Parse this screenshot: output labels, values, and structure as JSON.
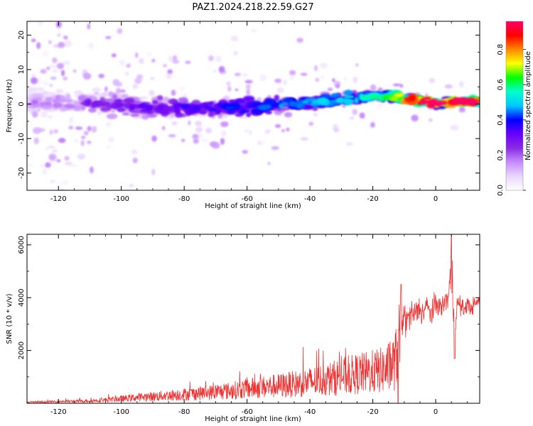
{
  "title": "PAZ1.2024.218.22.59.G27",
  "chart_data": [
    {
      "type": "heatmap",
      "xlabel": "Height of straight line (km)",
      "ylabel": "Frequency (Hz)",
      "xlim": [
        -130,
        14
      ],
      "ylim": [
        -25,
        24
      ],
      "xticks": [
        -120,
        -100,
        -80,
        -60,
        -40,
        -20,
        0
      ],
      "yticks": [
        -20,
        -10,
        0,
        10,
        20
      ],
      "colorbar": {
        "label": "Normalized spectral amplitude",
        "range": [
          0,
          0.96
        ],
        "ticks": [
          "0.0",
          "0.2",
          "0.4",
          "0.6",
          "0.8"
        ],
        "colormap": [
          "#ffffff",
          "#e9d6ff",
          "#c68cff",
          "#8a2be2",
          "#6a00ff",
          "#0000ff",
          "#00c8ff",
          "#00ffcc",
          "#00ff00",
          "#ffff00",
          "#ff8800",
          "#ff0000",
          "#ff0066"
        ]
      },
      "ridge": [
        {
          "x": -130,
          "f": 0.5,
          "amp": 0.15
        },
        {
          "x": -110,
          "f": 0.5,
          "amp": 0.25
        },
        {
          "x": -90,
          "f": -1.0,
          "amp": 0.3
        },
        {
          "x": -70,
          "f": -1.0,
          "amp": 0.35
        },
        {
          "x": -50,
          "f": -0.5,
          "amp": 0.4
        },
        {
          "x": -30,
          "f": 1.5,
          "amp": 0.45
        },
        {
          "x": -15,
          "f": 2.5,
          "amp": 0.55
        },
        {
          "x": -5,
          "f": 1.0,
          "amp": 0.85
        },
        {
          "x": 0,
          "f": 0.3,
          "amp": 0.85
        },
        {
          "x": 14,
          "f": 0.8,
          "amp": 0.9
        }
      ]
    },
    {
      "type": "line",
      "xlabel": "Height of straight line (km)",
      "ylabel": "SNR (10 * v/v)",
      "xlim": [
        -130,
        14
      ],
      "ylim": [
        0,
        6400
      ],
      "xticks": [
        -120,
        -100,
        -80,
        -60,
        -40,
        -20,
        0
      ],
      "yticks": [
        2000,
        4000,
        6000
      ],
      "color": "#ee3333",
      "series": [
        {
          "x": [
            -130,
            -125,
            -120,
            -115,
            -110,
            -105,
            -100,
            -95,
            -90,
            -85,
            -80,
            -75,
            -70,
            -65,
            -60,
            -55,
            -50,
            -45,
            -40,
            -35,
            -30,
            -25,
            -20,
            -16,
            -13,
            -11,
            -10,
            -9,
            -8,
            -7,
            -6,
            -5,
            -4,
            -3,
            -2,
            -1,
            0,
            1,
            2,
            3,
            4,
            5,
            6,
            7,
            8,
            9,
            10,
            11,
            12,
            13,
            14
          ],
          "y": [
            50,
            60,
            80,
            90,
            110,
            150,
            200,
            260,
            300,
            350,
            400,
            450,
            500,
            560,
            650,
            720,
            780,
            850,
            950,
            1050,
            1200,
            1300,
            1400,
            1500,
            1800,
            3000,
            3300,
            3100,
            3400,
            3300,
            3500,
            3600,
            3400,
            3700,
            3500,
            3400,
            3800,
            3700,
            3600,
            3900,
            4000,
            5200,
            2800,
            3800,
            3700,
            3500,
            3800,
            3600,
            3700,
            3800,
            3900
          ],
          "noise": [
            50,
            60,
            70,
            90,
            100,
            150,
            200,
            250,
            300,
            330,
            350,
            380,
            420,
            500,
            550,
            600,
            650,
            700,
            750,
            800,
            850,
            900,
            950,
            1000,
            900,
            700,
            600,
            500,
            500,
            450,
            450,
            450,
            450,
            400,
            400,
            400,
            350,
            350,
            350,
            350,
            350,
            900,
            600,
            400,
            300,
            250,
            250,
            250,
            250,
            200,
            200
          ]
        }
      ]
    }
  ]
}
